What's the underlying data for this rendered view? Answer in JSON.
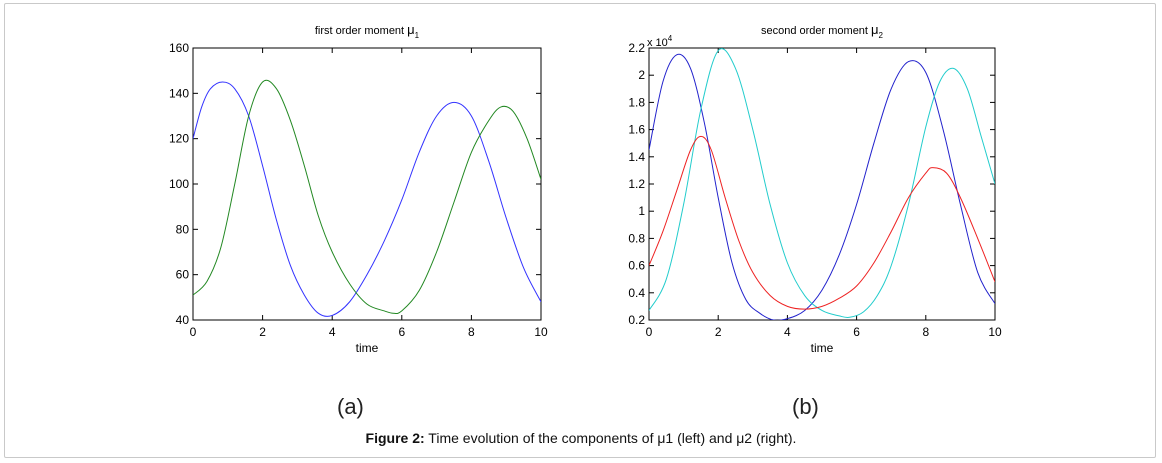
{
  "caption": {
    "label": "Figure 2:",
    "text": " Time evolution of the components of μ1 (left) and μ2 (right)."
  },
  "panels": [
    "(a)",
    "(b)"
  ],
  "chart_data": [
    {
      "type": "line",
      "title": "first order moment",
      "title_sub": "1",
      "title_symbol": "μ",
      "xlabel": "time",
      "ylabel": "",
      "xlim": [
        0,
        10
      ],
      "ylim": [
        40,
        160
      ],
      "xticks": [
        0,
        2,
        4,
        6,
        8,
        10
      ],
      "yticks": [
        40,
        60,
        80,
        100,
        120,
        140,
        160
      ],
      "exponent_label": "",
      "series": [
        {
          "color": "#3333ff",
          "x": [
            0,
            0.25,
            0.5,
            0.85,
            1.2,
            1.6,
            2,
            2.4,
            2.8,
            3.2,
            3.6,
            4,
            4.5,
            5,
            5.5,
            6,
            6.5,
            7,
            7.5,
            8,
            8.5,
            9,
            9.5,
            10
          ],
          "y": [
            120,
            134,
            142,
            145,
            142,
            130,
            108,
            84,
            64,
            51,
            43,
            42,
            48,
            60,
            75,
            93,
            114,
            130,
            136,
            130,
            110,
            85,
            63,
            48
          ]
        },
        {
          "color": "#228822",
          "x": [
            0,
            0.4,
            0.8,
            1.2,
            1.6,
            2,
            2.4,
            2.8,
            3.2,
            3.6,
            4,
            4.5,
            5,
            5.5,
            5.75,
            6,
            6.5,
            7,
            7.5,
            8,
            8.5,
            8.85,
            9.2,
            9.6,
            10
          ],
          "y": [
            51,
            57,
            72,
            100,
            130,
            145,
            142,
            128,
            108,
            86,
            70,
            56,
            47,
            44,
            43,
            44,
            53,
            70,
            92,
            114,
            128,
            134,
            132,
            120,
            102
          ]
        }
      ]
    },
    {
      "type": "line",
      "title": "second order moment",
      "title_sub": "2",
      "title_symbol": "μ",
      "xlabel": "time",
      "ylabel": "",
      "xlim": [
        0,
        10
      ],
      "ylim": [
        0.2,
        2.2
      ],
      "xticks": [
        0,
        2,
        4,
        6,
        8,
        10
      ],
      "yticks": [
        0.2,
        0.4,
        0.6,
        0.8,
        1,
        1.2,
        1.4,
        1.6,
        1.8,
        2,
        2.2
      ],
      "exponent_label": "x 10",
      "exponent_power": "4",
      "series": [
        {
          "color": "#2222cc",
          "x": [
            0,
            0.4,
            0.8,
            1.2,
            1.6,
            2,
            2.4,
            2.8,
            3.2,
            3.6,
            4,
            4.5,
            5,
            5.5,
            6,
            6.5,
            7,
            7.5,
            8,
            8.5,
            9,
            9.5,
            10
          ],
          "y": [
            1.45,
            1.95,
            2.15,
            2.05,
            1.65,
            1.1,
            0.62,
            0.35,
            0.25,
            0.2,
            0.21,
            0.27,
            0.42,
            0.68,
            1.05,
            1.5,
            1.9,
            2.1,
            2.02,
            1.6,
            1.05,
            0.55,
            0.32
          ]
        },
        {
          "color": "#22cccc",
          "x": [
            0,
            0.5,
            1,
            1.5,
            2,
            2.5,
            3,
            3.5,
            4,
            4.5,
            5,
            5.5,
            5.8,
            6.2,
            6.6,
            7,
            7.5,
            8,
            8.4,
            8.8,
            9.2,
            9.6,
            10
          ],
          "y": [
            0.27,
            0.5,
            1.05,
            1.75,
            2.18,
            2.05,
            1.6,
            1.05,
            0.62,
            0.38,
            0.27,
            0.23,
            0.22,
            0.26,
            0.38,
            0.6,
            1.05,
            1.62,
            1.95,
            2.05,
            1.9,
            1.55,
            1.2
          ]
        },
        {
          "color": "#ee2222",
          "x": [
            0,
            0.4,
            0.8,
            1.2,
            1.5,
            1.8,
            2.2,
            2.6,
            3,
            3.5,
            4,
            4.5,
            5,
            5.5,
            6,
            6.5,
            7,
            7.5,
            8,
            8.2,
            8.6,
            9,
            9.5,
            10
          ],
          "y": [
            0.6,
            0.85,
            1.15,
            1.45,
            1.55,
            1.45,
            1.1,
            0.78,
            0.55,
            0.38,
            0.3,
            0.28,
            0.3,
            0.36,
            0.45,
            0.62,
            0.85,
            1.1,
            1.28,
            1.32,
            1.28,
            1.1,
            0.8,
            0.48
          ]
        }
      ]
    }
  ]
}
